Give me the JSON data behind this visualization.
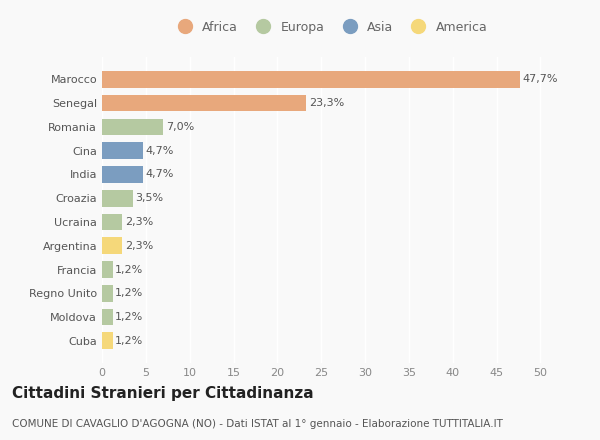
{
  "countries": [
    "Marocco",
    "Senegal",
    "Romania",
    "Cina",
    "India",
    "Croazia",
    "Ucraina",
    "Argentina",
    "Francia",
    "Regno Unito",
    "Moldova",
    "Cuba"
  ],
  "values": [
    47.7,
    23.3,
    7.0,
    4.7,
    4.7,
    3.5,
    2.3,
    2.3,
    1.2,
    1.2,
    1.2,
    1.2
  ],
  "labels": [
    "47,7%",
    "23,3%",
    "7,0%",
    "4,7%",
    "4,7%",
    "3,5%",
    "2,3%",
    "2,3%",
    "1,2%",
    "1,2%",
    "1,2%",
    "1,2%"
  ],
  "continents": [
    "Africa",
    "Africa",
    "Europa",
    "Asia",
    "Asia",
    "Europa",
    "Europa",
    "America",
    "Europa",
    "Europa",
    "Europa",
    "America"
  ],
  "colors": {
    "Africa": "#E8A87C",
    "Europa": "#B5C9A1",
    "Asia": "#7B9DC0",
    "America": "#F5D87A"
  },
  "legend_order": [
    "Africa",
    "Europa",
    "Asia",
    "America"
  ],
  "xlim": [
    0,
    52
  ],
  "xticks": [
    0,
    5,
    10,
    15,
    20,
    25,
    30,
    35,
    40,
    45,
    50
  ],
  "title": "Cittadini Stranieri per Cittadinanza",
  "subtitle": "COMUNE DI CAVAGLIO D'AGOGNA (NO) - Dati ISTAT al 1° gennaio - Elaborazione TUTTITALIA.IT",
  "background_color": "#f9f9f9",
  "bar_height": 0.7,
  "title_fontsize": 11,
  "subtitle_fontsize": 7.5,
  "label_fontsize": 8,
  "ytick_fontsize": 8,
  "xtick_fontsize": 8,
  "legend_fontsize": 9
}
